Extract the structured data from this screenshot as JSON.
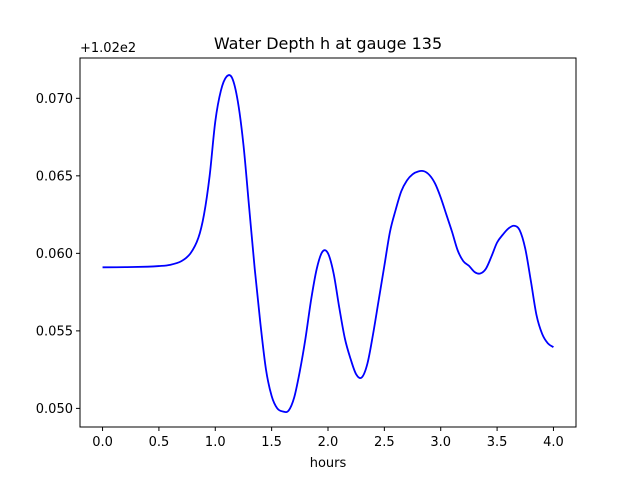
{
  "chart_data": {
    "type": "line",
    "title": "Water Depth h at gauge 135",
    "xlabel": "hours",
    "ylabel": "",
    "y_offset_label": "+1.02e2",
    "xlim": [
      -0.2,
      4.2
    ],
    "ylim": [
      0.0488,
      0.0726
    ],
    "grid": false,
    "legend": "none",
    "x_ticks": [
      {
        "value": 0.0,
        "label": "0.0"
      },
      {
        "value": 0.5,
        "label": "0.5"
      },
      {
        "value": 1.0,
        "label": "1.0"
      },
      {
        "value": 1.5,
        "label": "1.5"
      },
      {
        "value": 2.0,
        "label": "2.0"
      },
      {
        "value": 2.5,
        "label": "2.5"
      },
      {
        "value": 3.0,
        "label": "3.0"
      },
      {
        "value": 3.5,
        "label": "3.5"
      },
      {
        "value": 4.0,
        "label": "4.0"
      }
    ],
    "y_ticks": [
      {
        "value": 0.05,
        "label": "0.050"
      },
      {
        "value": 0.055,
        "label": "0.055"
      },
      {
        "value": 0.06,
        "label": "0.060"
      },
      {
        "value": 0.065,
        "label": "0.065"
      },
      {
        "value": 0.07,
        "label": "0.070"
      }
    ],
    "series": [
      {
        "color": "#0000ff",
        "points": [
          [
            0.0,
            0.0591
          ],
          [
            0.2,
            0.05911
          ],
          [
            0.4,
            0.05914
          ],
          [
            0.5,
            0.05918
          ],
          [
            0.6,
            0.05926
          ],
          [
            0.7,
            0.0595
          ],
          [
            0.78,
            0.06
          ],
          [
            0.85,
            0.061
          ],
          [
            0.9,
            0.0625
          ],
          [
            0.95,
            0.065
          ],
          [
            1.0,
            0.0685
          ],
          [
            1.05,
            0.0705
          ],
          [
            1.1,
            0.0714
          ],
          [
            1.15,
            0.0713
          ],
          [
            1.2,
            0.0698
          ],
          [
            1.25,
            0.067
          ],
          [
            1.3,
            0.063
          ],
          [
            1.35,
            0.059
          ],
          [
            1.4,
            0.0555
          ],
          [
            1.45,
            0.0525
          ],
          [
            1.5,
            0.0508
          ],
          [
            1.55,
            0.05
          ],
          [
            1.6,
            0.0498
          ],
          [
            1.65,
            0.04985
          ],
          [
            1.7,
            0.0507
          ],
          [
            1.75,
            0.0524
          ],
          [
            1.8,
            0.0545
          ],
          [
            1.85,
            0.057
          ],
          [
            1.9,
            0.059
          ],
          [
            1.95,
            0.0601
          ],
          [
            2.0,
            0.06
          ],
          [
            2.05,
            0.0587
          ],
          [
            2.1,
            0.0565
          ],
          [
            2.15,
            0.0545
          ],
          [
            2.2,
            0.0532
          ],
          [
            2.25,
            0.0522
          ],
          [
            2.3,
            0.052
          ],
          [
            2.35,
            0.0529
          ],
          [
            2.4,
            0.0548
          ],
          [
            2.45,
            0.057
          ],
          [
            2.5,
            0.0592
          ],
          [
            2.55,
            0.0614
          ],
          [
            2.6,
            0.0628
          ],
          [
            2.65,
            0.064
          ],
          [
            2.7,
            0.0647
          ],
          [
            2.75,
            0.0651
          ],
          [
            2.8,
            0.06528
          ],
          [
            2.85,
            0.0653
          ],
          [
            2.9,
            0.06505
          ],
          [
            2.95,
            0.0645
          ],
          [
            3.0,
            0.0636
          ],
          [
            3.05,
            0.0625
          ],
          [
            3.1,
            0.0614
          ],
          [
            3.15,
            0.0602
          ],
          [
            3.2,
            0.0595
          ],
          [
            3.25,
            0.0592
          ],
          [
            3.3,
            0.0588
          ],
          [
            3.35,
            0.0587
          ],
          [
            3.4,
            0.059
          ],
          [
            3.45,
            0.0598
          ],
          [
            3.5,
            0.0607
          ],
          [
            3.55,
            0.0612
          ],
          [
            3.6,
            0.0616
          ],
          [
            3.65,
            0.06178
          ],
          [
            3.7,
            0.0615
          ],
          [
            3.75,
            0.0603
          ],
          [
            3.8,
            0.0582
          ],
          [
            3.85,
            0.056
          ],
          [
            3.9,
            0.0548
          ],
          [
            3.95,
            0.0542
          ],
          [
            4.0,
            0.05395
          ]
        ]
      }
    ]
  }
}
